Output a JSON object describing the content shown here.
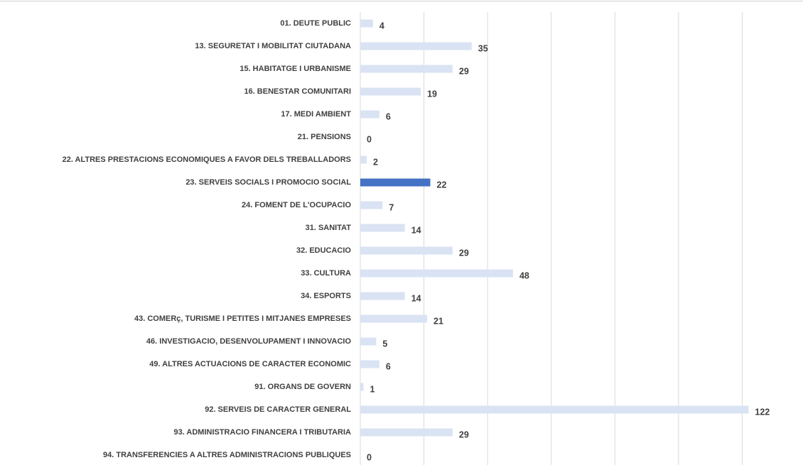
{
  "chart_data": {
    "type": "bar",
    "orientation": "horizontal",
    "categories": [
      "01. DEUTE PUBLIC",
      "13. SEGURETAT I MOBILITAT CIUTADANA",
      "15. HABITATGE I URBANISME",
      "16. BENESTAR COMUNITARI",
      "17. MEDI AMBIENT",
      "21. PENSIONS",
      "22. ALTRES PRESTACIONS ECONOMIQUES A FAVOR DELS TREBALLADORS",
      "23. SERVEIS SOCIALS I PROMOCIO SOCIAL",
      "24. FOMENT DE L'OCUPACIO",
      "31. SANITAT",
      "32. EDUCACIO",
      "33. CULTURA",
      "34. ESPORTS",
      "43. COMERç, TURISME I PETITES I MITJANES EMPRESES",
      "46. INVESTIGACIO, DESENVOLUPAMENT I INNOVACIO",
      "49. ALTRES ACTUACIONS DE CARACTER ECONOMIC",
      "91. ORGANS DE GOVERN",
      "92. SERVEIS DE CARACTER GENERAL",
      "93. ADMINISTRACIO FINANCERA I TRIBUTARIA",
      "94. TRANSFERENCIES A ALTRES ADMINISTRACIONS PUBLIQUES"
    ],
    "values": [
      4,
      35,
      29,
      19,
      6,
      0,
      2,
      22,
      7,
      14,
      29,
      48,
      14,
      21,
      5,
      6,
      1,
      122,
      29,
      0
    ],
    "colors": [
      "#dae3f3",
      "#dae3f3",
      "#dae3f3",
      "#dae3f3",
      "#dae3f3",
      "#dae3f3",
      "#dae3f3",
      "#4472c4",
      "#dae3f3",
      "#dae3f3",
      "#dae3f3",
      "#dae3f3",
      "#dae3f3",
      "#dae3f3",
      "#dae3f3",
      "#dae3f3",
      "#dae3f3",
      "#dae3f3",
      "#dae3f3",
      "#dae3f3"
    ],
    "xlim": [
      0,
      140
    ],
    "xticks": [
      0,
      20,
      40,
      60,
      80,
      100,
      120
    ],
    "grid": true
  }
}
